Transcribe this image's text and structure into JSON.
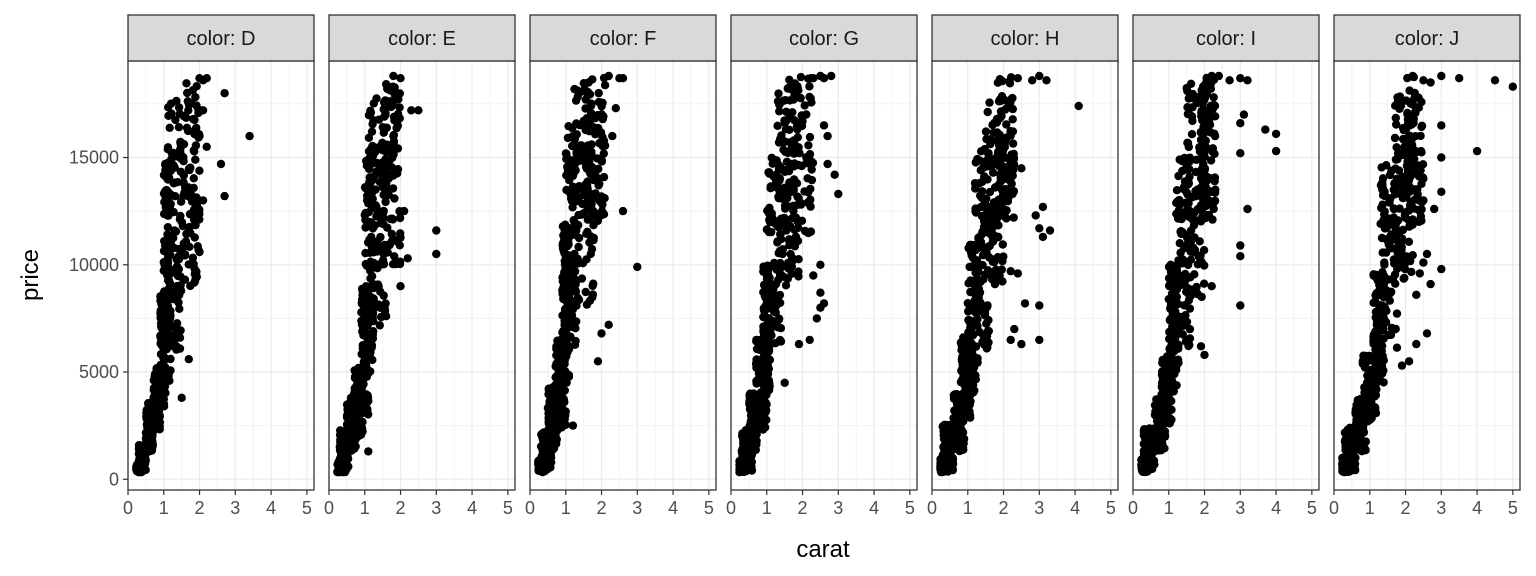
{
  "chart_data": {
    "type": "scatter",
    "facet_label_prefix": "color: ",
    "xlabel": "carat",
    "ylabel": "price",
    "xlim": [
      0,
      5.2
    ],
    "ylim": [
      -500,
      19500
    ],
    "x_ticks": [
      0,
      1,
      2,
      3,
      4,
      5
    ],
    "y_ticks": [
      0,
      5000,
      10000,
      15000
    ],
    "grid": true,
    "point_color": "#000000",
    "panel_strip_color": "#d9d9d9",
    "facets": [
      {
        "name": "D",
        "band": [
          [
            0.23,
            0.45,
            330,
            700
          ],
          [
            0.3,
            0.5,
            400,
            1600
          ],
          [
            0.5,
            0.7,
            1300,
            3600
          ],
          [
            0.7,
            0.9,
            2300,
            5200
          ],
          [
            0.9,
            1.05,
            3400,
            9000
          ],
          [
            1.0,
            1.2,
            4000,
            15000
          ],
          [
            1.1,
            1.5,
            6000,
            18000
          ],
          [
            1.5,
            2.0,
            9000,
            18500
          ]
        ],
        "outliers": [
          [
            2.0,
            18700
          ],
          [
            2.1,
            18600
          ],
          [
            2.2,
            18700
          ],
          [
            2.7,
            18000
          ],
          [
            3.4,
            16000
          ],
          [
            2.6,
            14700
          ],
          [
            2.7,
            13200
          ],
          [
            1.7,
            5600
          ],
          [
            1.5,
            3800
          ],
          [
            2.1,
            17200
          ],
          [
            2.0,
            16000
          ],
          [
            2.2,
            15500
          ],
          [
            2.1,
            13000
          ]
        ]
      },
      {
        "name": "E",
        "band": [
          [
            0.23,
            0.45,
            330,
            800
          ],
          [
            0.3,
            0.55,
            400,
            2300
          ],
          [
            0.5,
            0.75,
            1300,
            3800
          ],
          [
            0.7,
            0.95,
            2000,
            5200
          ],
          [
            0.9,
            1.1,
            3000,
            9000
          ],
          [
            1.0,
            1.25,
            5000,
            15000
          ],
          [
            1.1,
            1.6,
            7000,
            18000
          ],
          [
            1.5,
            2.0,
            10000,
            18500
          ]
        ],
        "outliers": [
          [
            2.0,
            18700
          ],
          [
            1.8,
            18800
          ],
          [
            2.3,
            17200
          ],
          [
            2.5,
            17200
          ],
          [
            3.0,
            11600
          ],
          [
            3.0,
            10500
          ],
          [
            2.2,
            10300
          ],
          [
            2.0,
            9000
          ],
          [
            1.1,
            1300
          ],
          [
            1.8,
            16000
          ],
          [
            2.1,
            12500
          ]
        ]
      },
      {
        "name": "F",
        "band": [
          [
            0.23,
            0.45,
            330,
            900
          ],
          [
            0.3,
            0.6,
            450,
            2200
          ],
          [
            0.5,
            0.75,
            1300,
            4300
          ],
          [
            0.7,
            1.0,
            2300,
            6500
          ],
          [
            0.9,
            1.1,
            4500,
            12000
          ],
          [
            1.0,
            1.3,
            6000,
            16500
          ],
          [
            1.2,
            1.8,
            8000,
            18500
          ],
          [
            1.5,
            2.1,
            12000,
            18800
          ]
        ],
        "outliers": [
          [
            2.2,
            18800
          ],
          [
            2.5,
            18700
          ],
          [
            2.6,
            18700
          ],
          [
            2.6,
            12500
          ],
          [
            3.0,
            9900
          ],
          [
            1.9,
            5500
          ],
          [
            2.0,
            6800
          ],
          [
            2.2,
            7200
          ],
          [
            1.2,
            2500
          ],
          [
            2.3,
            16000
          ],
          [
            2.4,
            17300
          ]
        ]
      },
      {
        "name": "G",
        "band": [
          [
            0.23,
            0.45,
            330,
            900
          ],
          [
            0.3,
            0.6,
            400,
            2400
          ],
          [
            0.5,
            0.75,
            1300,
            4000
          ],
          [
            0.7,
            1.0,
            2300,
            6500
          ],
          [
            0.9,
            1.1,
            4000,
            10000
          ],
          [
            1.0,
            1.4,
            6000,
            15000
          ],
          [
            1.3,
            1.9,
            9000,
            18000
          ],
          [
            1.5,
            2.3,
            11000,
            18800
          ]
        ],
        "outliers": [
          [
            2.3,
            18700
          ],
          [
            2.5,
            18800
          ],
          [
            2.6,
            18700
          ],
          [
            2.8,
            18800
          ],
          [
            2.6,
            16500
          ],
          [
            2.7,
            16000
          ],
          [
            2.7,
            14700
          ],
          [
            2.9,
            14200
          ],
          [
            3.0,
            13300
          ],
          [
            2.5,
            10000
          ],
          [
            2.5,
            8700
          ],
          [
            2.6,
            8200
          ],
          [
            2.4,
            7500
          ],
          [
            2.2,
            6500
          ],
          [
            2.5,
            8000
          ],
          [
            1.5,
            4500
          ],
          [
            2.3,
            9500
          ],
          [
            1.9,
            6300
          ]
        ]
      },
      {
        "name": "H",
        "band": [
          [
            0.23,
            0.45,
            330,
            1000
          ],
          [
            0.3,
            0.6,
            400,
            2600
          ],
          [
            0.6,
            0.9,
            1300,
            4000
          ],
          [
            0.8,
            1.1,
            2800,
            6800
          ],
          [
            1.0,
            1.3,
            4000,
            11000
          ],
          [
            1.2,
            1.6,
            6000,
            15500
          ],
          [
            1.5,
            2.0,
            9000,
            18000
          ],
          [
            1.8,
            2.3,
            12000,
            18800
          ]
        ],
        "outliers": [
          [
            2.4,
            18700
          ],
          [
            2.8,
            18600
          ],
          [
            3.0,
            18800
          ],
          [
            3.2,
            18600
          ],
          [
            4.1,
            17400
          ],
          [
            2.9,
            12300
          ],
          [
            3.1,
            12700
          ],
          [
            3.0,
            11700
          ],
          [
            3.3,
            11600
          ],
          [
            3.1,
            11300
          ],
          [
            3.0,
            8100
          ],
          [
            3.0,
            6500
          ],
          [
            2.5,
            6300
          ],
          [
            2.3,
            7000
          ],
          [
            2.2,
            6500
          ],
          [
            2.6,
            8200
          ],
          [
            2.4,
            9600
          ],
          [
            2.5,
            14500
          ],
          [
            2.1,
            14000
          ],
          [
            2.2,
            9700
          ]
        ]
      },
      {
        "name": "I",
        "band": [
          [
            0.23,
            0.45,
            330,
            1000
          ],
          [
            0.3,
            0.6,
            400,
            2400
          ],
          [
            0.6,
            0.9,
            1300,
            3800
          ],
          [
            0.8,
            1.1,
            2600,
            5800
          ],
          [
            1.0,
            1.3,
            4000,
            10000
          ],
          [
            1.2,
            1.6,
            6000,
            15000
          ],
          [
            1.5,
            2.0,
            8500,
            18500
          ],
          [
            1.9,
            2.3,
            12000,
            18800
          ]
        ],
        "outliers": [
          [
            2.2,
            18800
          ],
          [
            2.4,
            18800
          ],
          [
            2.7,
            18600
          ],
          [
            3.0,
            18700
          ],
          [
            3.2,
            18600
          ],
          [
            3.1,
            17000
          ],
          [
            3.0,
            16600
          ],
          [
            3.0,
            15200
          ],
          [
            3.7,
            16300
          ],
          [
            4.0,
            16100
          ],
          [
            4.0,
            15300
          ],
          [
            3.2,
            12600
          ],
          [
            3.0,
            10900
          ],
          [
            3.0,
            10400
          ],
          [
            3.0,
            8100
          ],
          [
            1.9,
            6200
          ],
          [
            2.0,
            5800
          ],
          [
            2.3,
            13500
          ],
          [
            2.2,
            9000
          ]
        ]
      },
      {
        "name": "J",
        "band": [
          [
            0.23,
            0.45,
            330,
            1000
          ],
          [
            0.3,
            0.6,
            400,
            2400
          ],
          [
            0.6,
            0.9,
            1300,
            3800
          ],
          [
            0.8,
            1.2,
            2700,
            5800
          ],
          [
            1.1,
            1.4,
            4500,
            10000
          ],
          [
            1.3,
            1.8,
            6000,
            15000
          ],
          [
            1.7,
            2.2,
            9000,
            18000
          ],
          [
            2.0,
            2.5,
            12000,
            18800
          ]
        ],
        "outliers": [
          [
            2.2,
            18800
          ],
          [
            2.5,
            18600
          ],
          [
            2.7,
            18500
          ],
          [
            3.0,
            18800
          ],
          [
            3.5,
            18700
          ],
          [
            4.5,
            18600
          ],
          [
            5.0,
            18300
          ],
          [
            4.0,
            15300
          ],
          [
            3.0,
            16500
          ],
          [
            3.0,
            15000
          ],
          [
            3.0,
            13400
          ],
          [
            2.8,
            12600
          ],
          [
            2.6,
            10500
          ],
          [
            2.5,
            10100
          ],
          [
            2.4,
            9600
          ],
          [
            3.0,
            9800
          ],
          [
            2.7,
            9100
          ],
          [
            2.6,
            6800
          ],
          [
            2.3,
            6300
          ],
          [
            2.1,
            5500
          ],
          [
            1.9,
            5300
          ],
          [
            2.3,
            8600
          ],
          [
            2.5,
            13000
          ]
        ]
      }
    ]
  }
}
